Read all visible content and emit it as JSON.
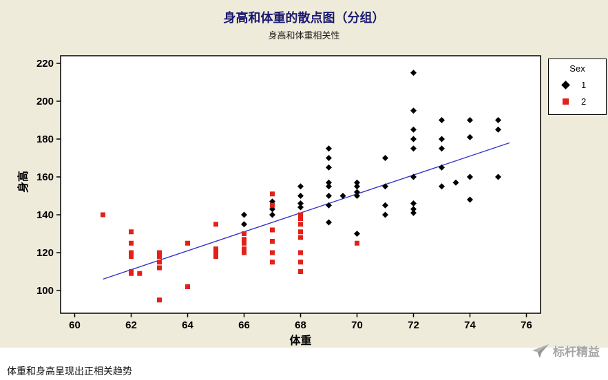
{
  "chart_data": {
    "type": "scatter",
    "title": "身高和体重的散点图（分组）",
    "subtitle": "身高和体重相关性",
    "xlabel": "体重",
    "ylabel": "身高",
    "xlim": [
      59.5,
      76.5
    ],
    "ylim": [
      88,
      224
    ],
    "xticks": [
      60,
      62,
      64,
      66,
      68,
      70,
      72,
      74,
      76
    ],
    "yticks": [
      100,
      120,
      140,
      160,
      180,
      200,
      220
    ],
    "grid": false,
    "background": "#efebda",
    "plot_background": "#ffffff",
    "legend": {
      "title": "Sex",
      "position": "top-right"
    },
    "trendline": {
      "color": "#3333cc",
      "x1": 61.0,
      "y1": 106,
      "x2": 75.4,
      "y2": 178
    },
    "series": [
      {
        "name": "1",
        "marker": "diamond",
        "color": "#000000",
        "points": [
          [
            66,
            135
          ],
          [
            66,
            140
          ],
          [
            67,
            140
          ],
          [
            67,
            143
          ],
          [
            67,
            147
          ],
          [
            68,
            144
          ],
          [
            68,
            146
          ],
          [
            68,
            150
          ],
          [
            68,
            155
          ],
          [
            69,
            136
          ],
          [
            69,
            145
          ],
          [
            69,
            150
          ],
          [
            69,
            155
          ],
          [
            69,
            157
          ],
          [
            69,
            165
          ],
          [
            69,
            170
          ],
          [
            69,
            175
          ],
          [
            69.5,
            150
          ],
          [
            70,
            130
          ],
          [
            70,
            150
          ],
          [
            70,
            152
          ],
          [
            70,
            155
          ],
          [
            70,
            157
          ],
          [
            71,
            140
          ],
          [
            71,
            145
          ],
          [
            71,
            155
          ],
          [
            71,
            170
          ],
          [
            72,
            141
          ],
          [
            72,
            143
          ],
          [
            72,
            146
          ],
          [
            72,
            160
          ],
          [
            72,
            175
          ],
          [
            72,
            180
          ],
          [
            72,
            185
          ],
          [
            72,
            195
          ],
          [
            72,
            215
          ],
          [
            73,
            155
          ],
          [
            73,
            165
          ],
          [
            73,
            175
          ],
          [
            73,
            180
          ],
          [
            73,
            190
          ],
          [
            73.5,
            157
          ],
          [
            74,
            148
          ],
          [
            74,
            160
          ],
          [
            74,
            181
          ],
          [
            74,
            190
          ],
          [
            75,
            160
          ],
          [
            75,
            185
          ],
          [
            75,
            190
          ]
        ]
      },
      {
        "name": "2",
        "marker": "square",
        "color": "#e32119",
        "points": [
          [
            61,
            140
          ],
          [
            62,
            109
          ],
          [
            62,
            110
          ],
          [
            62,
            118
          ],
          [
            62,
            120
          ],
          [
            62,
            125
          ],
          [
            62,
            131
          ],
          [
            62.3,
            109
          ],
          [
            63,
            95
          ],
          [
            63,
            112
          ],
          [
            63,
            115
          ],
          [
            63,
            118
          ],
          [
            63,
            120
          ],
          [
            64,
            102
          ],
          [
            64,
            125
          ],
          [
            65,
            118
          ],
          [
            65,
            120
          ],
          [
            65,
            122
          ],
          [
            65,
            135
          ],
          [
            66,
            120
          ],
          [
            66,
            122
          ],
          [
            66,
            125
          ],
          [
            66,
            127
          ],
          [
            66,
            130
          ],
          [
            67,
            115
          ],
          [
            67,
            120
          ],
          [
            67,
            126
          ],
          [
            67,
            132
          ],
          [
            67,
            145
          ],
          [
            67,
            151
          ],
          [
            68,
            110
          ],
          [
            68,
            115
          ],
          [
            68,
            120
          ],
          [
            68,
            128
          ],
          [
            68,
            131
          ],
          [
            68,
            135
          ],
          [
            68,
            138
          ],
          [
            68,
            140
          ],
          [
            70,
            125
          ]
        ]
      }
    ]
  },
  "footer": {
    "note": "体重和身高呈现出正相关趋势",
    "watermark": "标杆精益"
  }
}
